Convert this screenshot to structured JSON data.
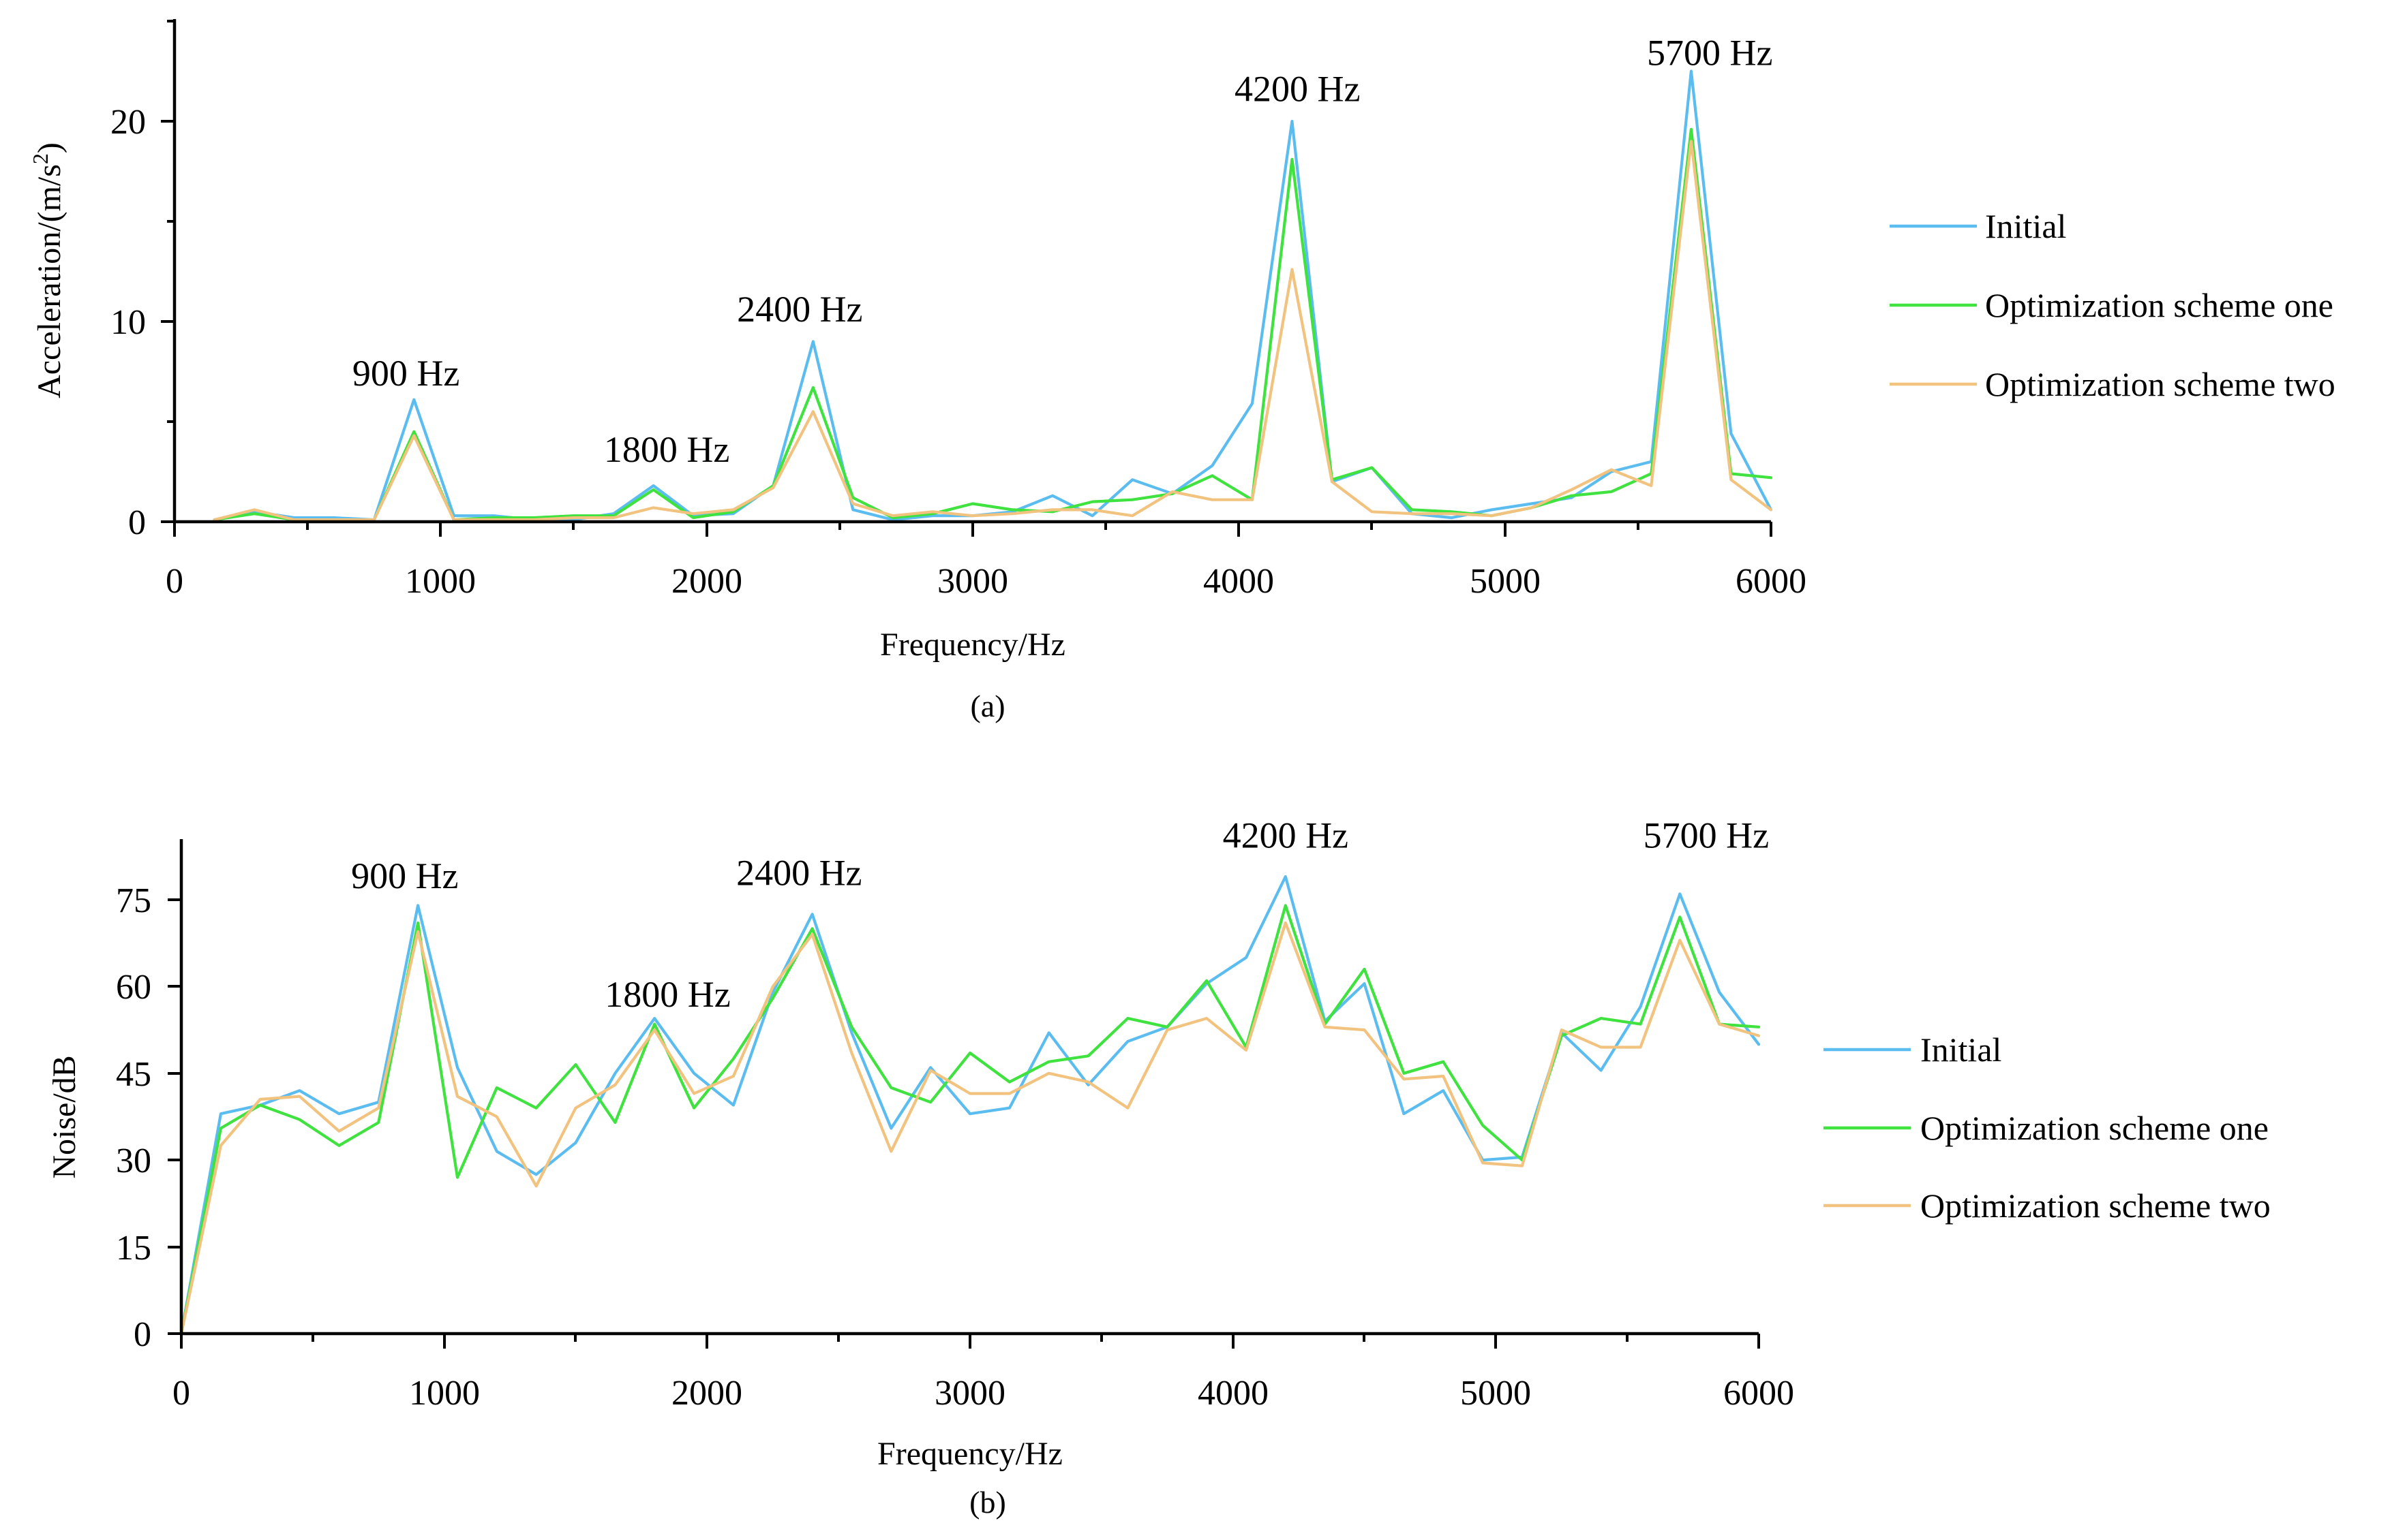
{
  "colors": {
    "initial": "#5bbcf0",
    "scheme_one": "#3fe23f",
    "scheme_two": "#f2c27f",
    "axis": "#000000"
  },
  "chart_data": [
    {
      "id": "a",
      "type": "line",
      "caption": "(a)",
      "title": "",
      "xlabel": "Frequency/Hz",
      "ylabel_main": "Acceleration/(m/s",
      "ylabel_sup": "2",
      "ylabel_end": ")",
      "xlim": [
        0,
        6000
      ],
      "ylim": [
        0,
        25
      ],
      "xticks": [
        0,
        1000,
        2000,
        3000,
        4000,
        5000,
        6000
      ],
      "yticks": [
        0,
        10,
        20
      ],
      "grid": false,
      "legend_position": "right",
      "x": [
        150,
        300,
        450,
        600,
        750,
        900,
        1050,
        1200,
        1350,
        1500,
        1650,
        1800,
        1950,
        2100,
        2250,
        2400,
        2550,
        2700,
        2850,
        3000,
        3150,
        3300,
        3450,
        3600,
        3750,
        3900,
        4050,
        4200,
        4350,
        4500,
        4650,
        4800,
        4950,
        5100,
        5250,
        5400,
        5550,
        5700,
        5850,
        6000
      ],
      "series": [
        {
          "name": "Initial",
          "color_key": "initial",
          "values": [
            0.1,
            0.5,
            0.2,
            0.2,
            0.1,
            6.1,
            0.3,
            0.3,
            0.1,
            0.1,
            0.4,
            1.8,
            0.3,
            0.4,
            1.8,
            9.0,
            0.6,
            0.1,
            0.3,
            0.3,
            0.5,
            1.3,
            0.3,
            2.1,
            1.4,
            2.8,
            5.9,
            20.0,
            2.0,
            2.7,
            0.4,
            0.2,
            0.6,
            0.9,
            1.2,
            2.5,
            3.0,
            22.5,
            4.4,
            0.6
          ]
        },
        {
          "name": "Optimization scheme one",
          "color_key": "scheme_one",
          "values": [
            0.1,
            0.4,
            0.1,
            0.1,
            0.1,
            4.5,
            0.1,
            0.2,
            0.2,
            0.3,
            0.3,
            1.6,
            0.2,
            0.5,
            1.8,
            6.7,
            1.2,
            0.2,
            0.4,
            0.9,
            0.6,
            0.5,
            1.0,
            1.1,
            1.4,
            2.3,
            1.1,
            18.1,
            2.1,
            2.7,
            0.6,
            0.5,
            0.3,
            0.7,
            1.3,
            1.5,
            2.4,
            19.6,
            2.4,
            2.2
          ]
        },
        {
          "name": "Optimization scheme two",
          "color_key": "scheme_two",
          "values": [
            0.1,
            0.6,
            0.1,
            0.1,
            0.1,
            4.3,
            0.1,
            0.1,
            0.1,
            0.2,
            0.2,
            0.7,
            0.4,
            0.6,
            1.7,
            5.5,
            0.9,
            0.3,
            0.5,
            0.3,
            0.4,
            0.6,
            0.6,
            0.3,
            1.5,
            1.1,
            1.1,
            12.6,
            2.0,
            0.5,
            0.4,
            0.4,
            0.3,
            0.7,
            1.6,
            2.6,
            1.8,
            19.0,
            2.1,
            0.6
          ]
        }
      ],
      "annotations": [
        {
          "text": "900 Hz",
          "x": 870,
          "y": 6.8
        },
        {
          "text": "1800 Hz",
          "x": 1850,
          "y": 3.0
        },
        {
          "text": "2400 Hz",
          "x": 2350,
          "y": 10.0
        },
        {
          "text": "4200 Hz",
          "x": 4220,
          "y": 21.0
        },
        {
          "text": "5700 Hz",
          "x": 5770,
          "y": 22.8
        }
      ]
    },
    {
      "id": "b",
      "type": "line",
      "caption": "(b)",
      "title": "",
      "xlabel": "Frequency/Hz",
      "ylabel_main": "Noise/dB",
      "ylabel_sup": "",
      "ylabel_end": "",
      "xlim": [
        0,
        6000
      ],
      "ylim": [
        0,
        85
      ],
      "xticks": [
        0,
        1000,
        2000,
        3000,
        4000,
        5000,
        6000
      ],
      "yticks": [
        0,
        15,
        30,
        45,
        60,
        75
      ],
      "grid": false,
      "legend_position": "right",
      "x": [
        0,
        150,
        300,
        450,
        600,
        750,
        900,
        1050,
        1200,
        1350,
        1500,
        1650,
        1800,
        1950,
        2100,
        2250,
        2400,
        2550,
        2700,
        2850,
        3000,
        3150,
        3300,
        3450,
        3600,
        3750,
        3900,
        4050,
        4200,
        4350,
        4500,
        4650,
        4800,
        4950,
        5100,
        5250,
        5400,
        5550,
        5700,
        5850,
        6000
      ],
      "series": [
        {
          "name": "Initial",
          "color_key": "initial",
          "values": [
            0,
            38,
            39.5,
            42,
            38,
            40,
            74,
            46,
            31.5,
            27.5,
            33,
            45,
            54.5,
            45,
            39.5,
            59,
            72.5,
            52,
            35.5,
            46,
            38,
            39,
            52,
            43,
            50.5,
            53,
            60.5,
            65,
            79,
            54,
            60.5,
            38,
            42,
            30,
            30.5,
            52,
            45.5,
            56.5,
            76,
            59,
            50
          ]
        },
        {
          "name": "Optimization scheme one",
          "color_key": "scheme_one",
          "values": [
            0,
            35.5,
            39.5,
            37,
            32.5,
            36.5,
            71,
            27,
            42.5,
            39,
            46.5,
            36.5,
            53.5,
            39,
            47.5,
            58,
            70,
            53,
            42.5,
            40,
            48.5,
            43.5,
            47,
            48,
            54.5,
            53,
            61,
            49.5,
            74,
            53.5,
            63,
            45,
            47,
            36,
            30,
            51.5,
            54.5,
            53.5,
            72,
            53.5,
            53
          ]
        },
        {
          "name": "Optimization scheme two",
          "color_key": "scheme_two",
          "values": [
            0,
            32.5,
            40.5,
            41,
            35,
            39,
            69.5,
            41,
            37.5,
            25.5,
            39,
            43,
            52.5,
            41.5,
            44.5,
            60,
            69,
            48.5,
            31.5,
            45.5,
            41.5,
            41.5,
            45,
            43.5,
            39,
            52.5,
            54.5,
            49,
            71,
            53,
            52.5,
            44,
            44.5,
            29.5,
            29,
            52.5,
            49.5,
            49.5,
            68,
            53.5,
            51.5
          ]
        }
      ],
      "annotations": [
        {
          "text": "900 Hz",
          "x": 850,
          "y": 77
        },
        {
          "text": "1800 Hz",
          "x": 1850,
          "y": 56.5
        },
        {
          "text": "2400 Hz",
          "x": 2350,
          "y": 77.5
        },
        {
          "text": "4200 Hz",
          "x": 4200,
          "y": 84
        },
        {
          "text": "5700 Hz",
          "x": 5800,
          "y": 84
        }
      ]
    }
  ]
}
